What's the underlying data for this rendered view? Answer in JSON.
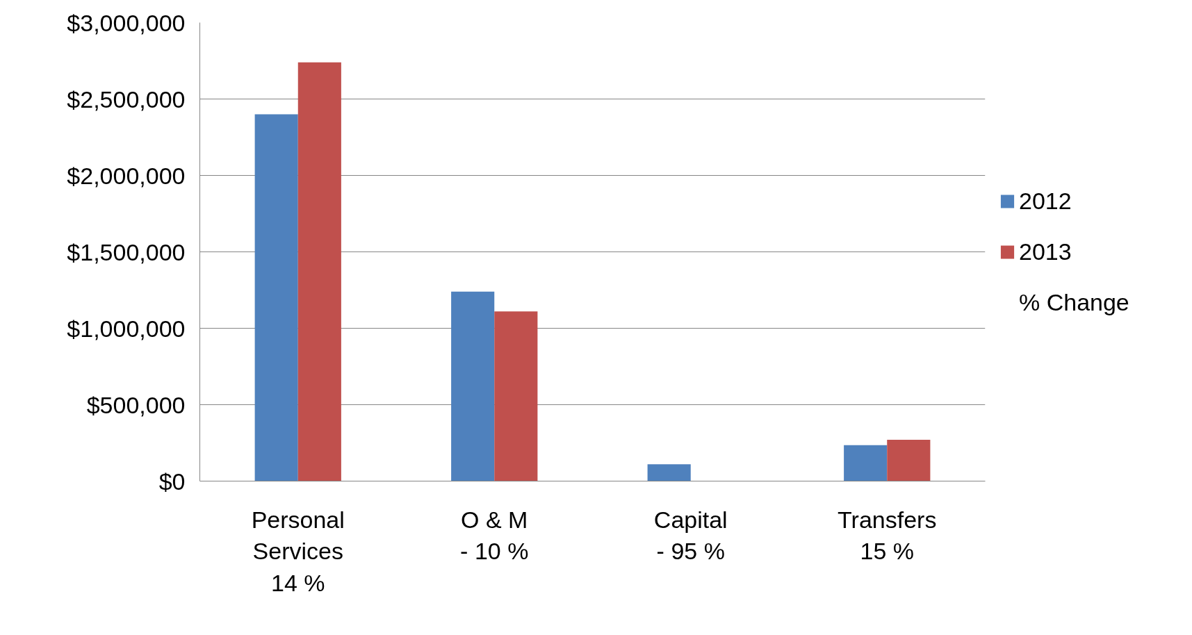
{
  "chart_data": {
    "type": "bar",
    "categories": [
      "Personal\nServices\n14 %",
      "O & M\n- 10 %",
      "Capital\n- 95 %",
      "Transfers\n15 %"
    ],
    "series": [
      {
        "name": "2012",
        "color": "#4f81bd",
        "values": [
          2400000,
          1240000,
          110000,
          235000
        ]
      },
      {
        "name": "2013",
        "color": "#c0504d",
        "values": [
          2740000,
          1110000,
          0,
          270000
        ]
      }
    ],
    "ylim": [
      0,
      3000000
    ],
    "yticks": [
      {
        "value": 0,
        "label": "$0"
      },
      {
        "value": 500000,
        "label": "$500,000"
      },
      {
        "value": 1000000,
        "label": "$1,000,000"
      },
      {
        "value": 1500000,
        "label": "$1,500,000"
      },
      {
        "value": 2000000,
        "label": "$2,000,000"
      },
      {
        "value": 2500000,
        "label": "$2,500,000"
      },
      {
        "value": 3000000,
        "label": "$3,000,000"
      }
    ],
    "grid": "y",
    "legend": "right",
    "annotations": [
      "% Change"
    ]
  }
}
